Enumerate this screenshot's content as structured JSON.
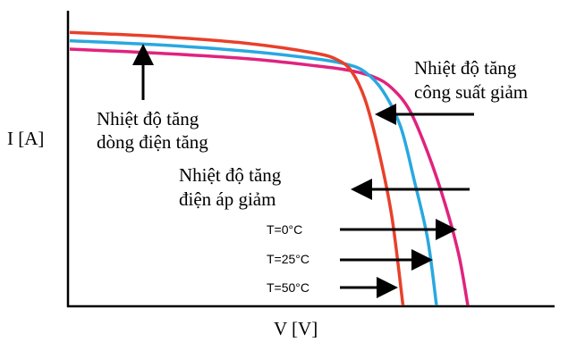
{
  "chart_data": {
    "type": "line",
    "title": "",
    "xlabel": "V [V]",
    "ylabel": "I [A]",
    "grid": false,
    "series": [
      {
        "name": "T=0°C",
        "color": "#e0237e",
        "points": [
          [
            0,
            0.92
          ],
          [
            0.2,
            0.905
          ],
          [
            0.4,
            0.885
          ],
          [
            0.55,
            0.86
          ],
          [
            0.62,
            0.845
          ],
          [
            0.68,
            0.82
          ],
          [
            0.72,
            0.78
          ],
          [
            0.76,
            0.7
          ],
          [
            0.8,
            0.55
          ],
          [
            0.84,
            0.36
          ],
          [
            0.87,
            0.18
          ],
          [
            0.89,
            0.0
          ]
        ]
      },
      {
        "name": "T=25°C",
        "color": "#29a8e0",
        "points": [
          [
            0,
            0.95
          ],
          [
            0.2,
            0.935
          ],
          [
            0.4,
            0.912
          ],
          [
            0.55,
            0.885
          ],
          [
            0.62,
            0.865
          ],
          [
            0.66,
            0.838
          ],
          [
            0.7,
            0.77
          ],
          [
            0.74,
            0.64
          ],
          [
            0.77,
            0.45
          ],
          [
            0.8,
            0.24
          ],
          [
            0.82,
            0.0
          ]
        ]
      },
      {
        "name": "T=50°C",
        "color": "#e8402a",
        "points": [
          [
            0,
            0.98
          ],
          [
            0.2,
            0.965
          ],
          [
            0.4,
            0.94
          ],
          [
            0.55,
            0.905
          ],
          [
            0.6,
            0.88
          ],
          [
            0.63,
            0.84
          ],
          [
            0.66,
            0.74
          ],
          [
            0.69,
            0.56
          ],
          [
            0.72,
            0.32
          ],
          [
            0.745,
            0.0
          ]
        ]
      }
    ]
  },
  "labels": {
    "ylabel": "I [A]",
    "xlabel": "V [V]",
    "ann_current_1": "Nhiệt độ tăng",
    "ann_current_2": "dòng điện tăng",
    "ann_power_1": "Nhiệt độ tăng",
    "ann_power_2": "công suất giảm",
    "ann_voltage_1": "Nhiệt độ tăng",
    "ann_voltage_2": "điện áp giảm",
    "temp_0": "T=0°C",
    "temp_25": "T=25°C",
    "temp_50": "T=50°C"
  }
}
